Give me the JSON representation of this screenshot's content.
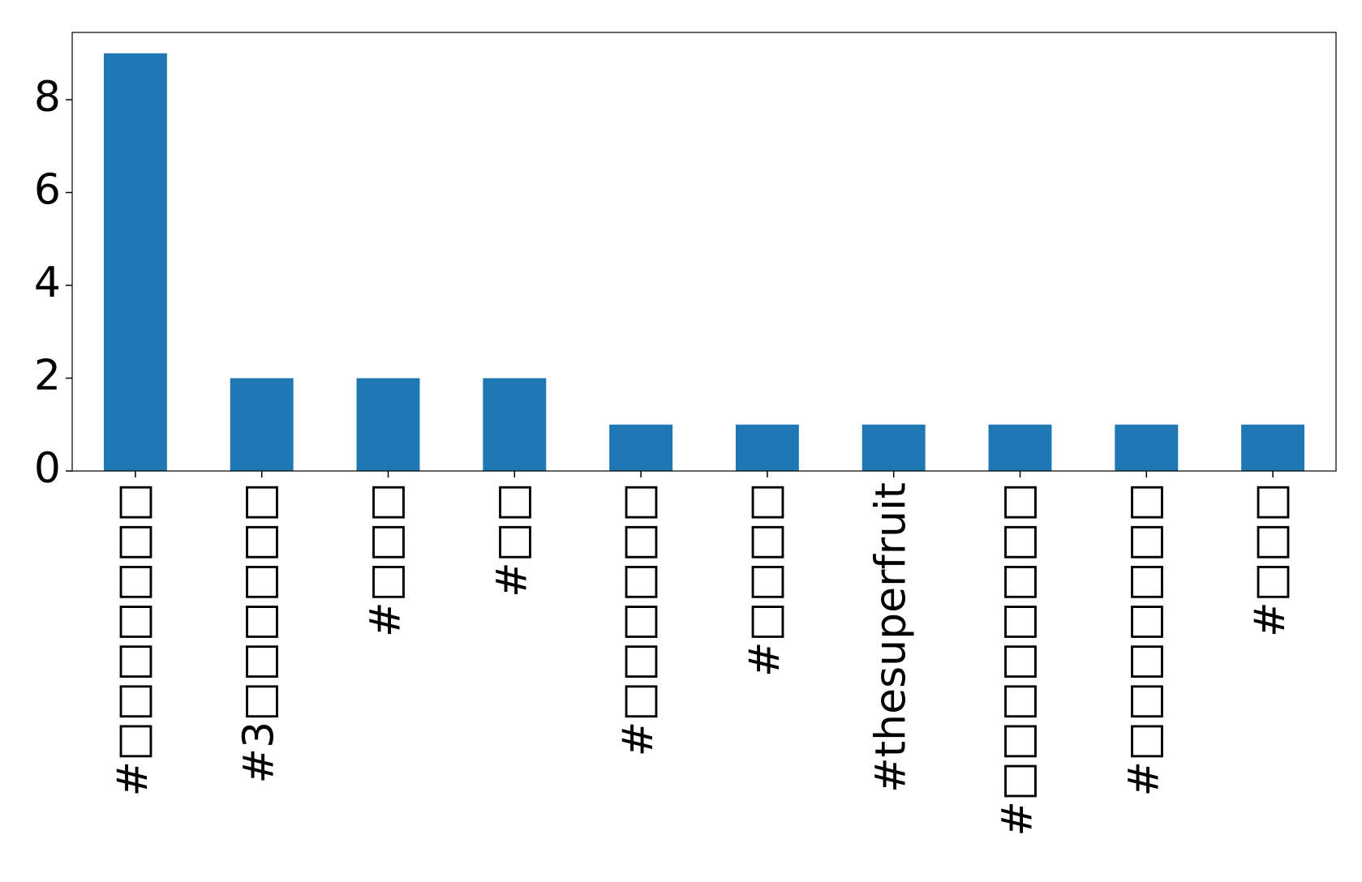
{
  "chart_data": {
    "type": "bar",
    "categories": [
      "#□□□□□□□",
      "#3□□□□□□",
      "#□□□",
      "#□□",
      "#□□□□□□",
      "#□□□□",
      "#thesuperfruit",
      "#□□□□□□□□",
      "#□□□□□□□",
      "#□□□"
    ],
    "values": [
      9,
      2,
      2,
      2,
      1,
      1,
      1,
      1,
      1,
      1
    ],
    "color": "#1f77b4",
    "ylim": [
      0,
      9.45
    ],
    "yticks": [
      0,
      2,
      4,
      6,
      8
    ],
    "grid": false
  }
}
